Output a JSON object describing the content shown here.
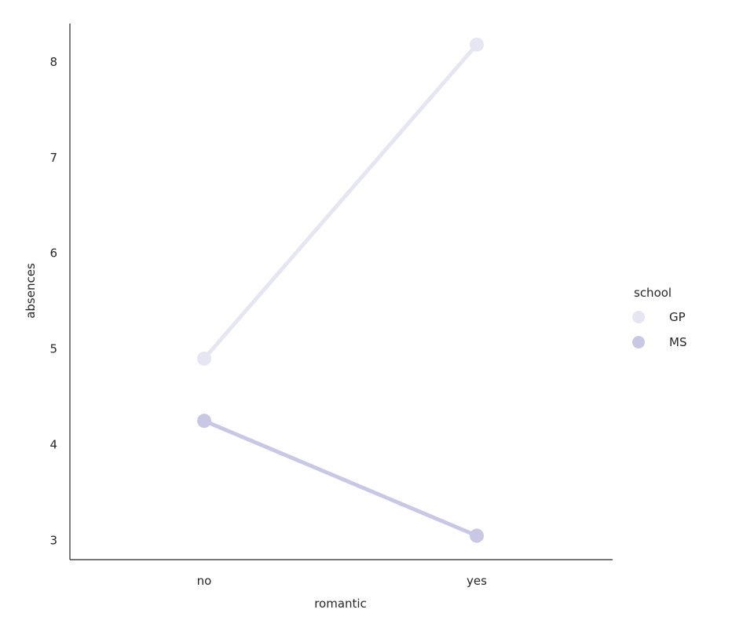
{
  "chart_data": {
    "type": "line",
    "title": "",
    "xlabel": "romantic",
    "ylabel": "absences",
    "categories": [
      "no",
      "yes"
    ],
    "ylim": [
      2.8,
      8.4
    ],
    "yticks": [
      3,
      4,
      5,
      6,
      7,
      8
    ],
    "grid": false,
    "legend": {
      "title": "school",
      "placement": "right"
    },
    "series": [
      {
        "name": "GP",
        "values": [
          4.9,
          8.18
        ],
        "color": "#e6e6f2"
      },
      {
        "name": "MS",
        "values": [
          4.25,
          3.05
        ],
        "color": "#c8c8e4"
      }
    ]
  }
}
